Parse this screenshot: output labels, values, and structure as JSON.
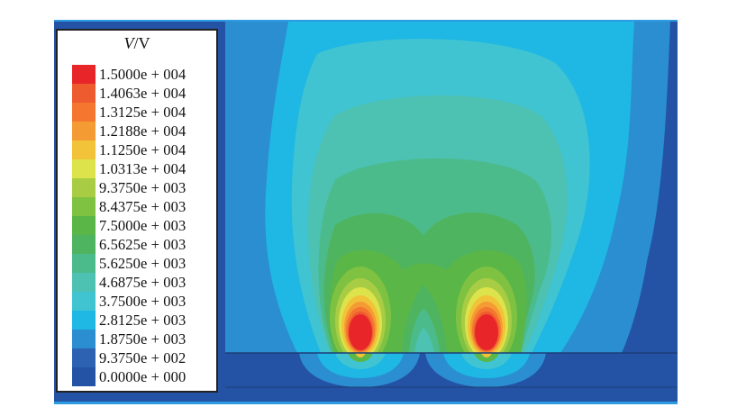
{
  "legend": {
    "title_var": "V",
    "title_unit": "/V",
    "levels": [
      {
        "label": "1.5000e + 004",
        "color": "#e8262a"
      },
      {
        "label": "1.4063e + 004",
        "color": "#ee5b2f"
      },
      {
        "label": "1.3125e + 004",
        "color": "#f4762f"
      },
      {
        "label": "1.2188e + 004",
        "color": "#f59b33"
      },
      {
        "label": "1.1250e + 004",
        "color": "#f2c238"
      },
      {
        "label": "1.0313e + 004",
        "color": "#dde34a"
      },
      {
        "label": "9.3750e + 003",
        "color": "#a8cd45"
      },
      {
        "label": "8.4375e + 003",
        "color": "#7fc242"
      },
      {
        "label": "7.5000e + 003",
        "color": "#5ab646"
      },
      {
        "label": "6.5625e + 003",
        "color": "#4fb45f"
      },
      {
        "label": "5.6250e + 003",
        "color": "#4cbb8b"
      },
      {
        "label": "4.6875e + 003",
        "color": "#4dc1b2"
      },
      {
        "label": "3.7500e + 003",
        "color": "#40c4d2"
      },
      {
        "label": "2.8125e + 003",
        "color": "#1fb7e4"
      },
      {
        "label": "1.8750e + 003",
        "color": "#2b8ed0"
      },
      {
        "label": "9.3750e + 002",
        "color": "#2d62b3"
      },
      {
        "label": "0.0000e + 000",
        "color": "#2452a4"
      }
    ]
  },
  "colors": {
    "background": "#2452a4",
    "surface_line": "#1d3e78",
    "frame_top": "#2e9be0"
  }
}
